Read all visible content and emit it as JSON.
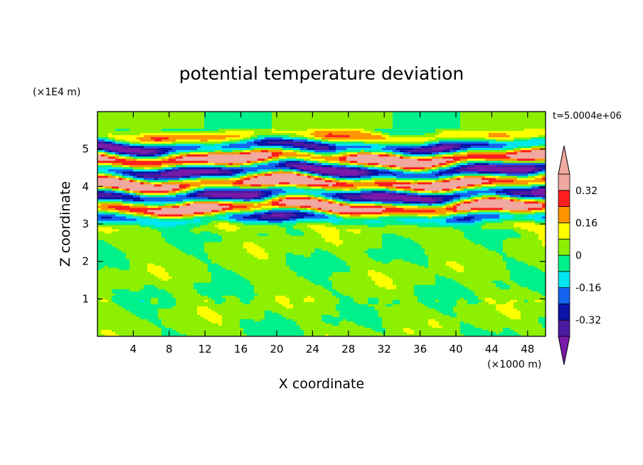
{
  "chart_data": {
    "type": "heatmap",
    "title": "potential temperature deviation",
    "xlabel": "X coordinate",
    "ylabel": "Z coordinate",
    "x_unit": "(×1000 m)",
    "y_unit": "(×1E4 m)",
    "time_label": "t=5.0004e+06",
    "xlim": [
      0,
      50
    ],
    "ylim": [
      0,
      6
    ],
    "x_ticks": [
      4,
      8,
      12,
      16,
      20,
      24,
      28,
      32,
      36,
      40,
      44,
      48
    ],
    "y_ticks": [
      1,
      2,
      3,
      4,
      5
    ],
    "x_tick_labels": [
      "4",
      "8",
      "12",
      "16",
      "20",
      "24",
      "28",
      "32",
      "36",
      "40",
      "44",
      "48"
    ],
    "y_tick_labels": [
      "1",
      "2",
      "3",
      "4",
      "5"
    ],
    "colorbar": {
      "levels": [
        -0.4,
        -0.32,
        -0.24,
        -0.16,
        -0.08,
        0,
        0.08,
        0.16,
        0.24,
        0.32,
        0.4
      ],
      "labeled_levels": [
        -0.32,
        -0.16,
        0,
        0.16,
        0.32
      ],
      "labels": [
        "-0.32",
        "-0.16",
        "0",
        "0.16",
        "0.32"
      ],
      "under_color": "#7a1aa8",
      "over_color": "#f0a8a0",
      "colors": [
        "#4a1aa0",
        "#0a14a8",
        "#1464f0",
        "#00e6f0",
        "#00f08c",
        "#8cf000",
        "#ffff00",
        "#ff9600",
        "#ff1e1e",
        "#f0a8a0"
      ]
    },
    "field_description": {
      "background_band_value": 0.04,
      "perturbed_layer_z_range": [
        3.0,
        5.4
      ],
      "quiet_layer_z_range": [
        0,
        3.0
      ]
    }
  }
}
